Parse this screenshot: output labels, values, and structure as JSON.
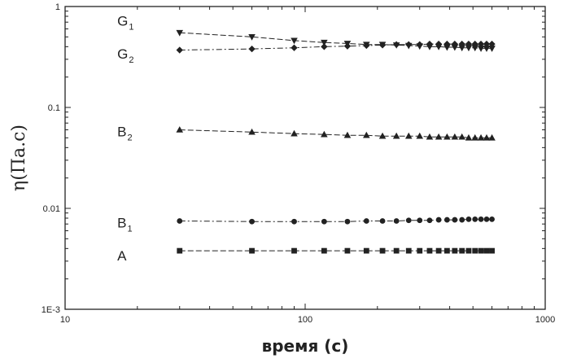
{
  "chart_data": {
    "type": "line",
    "xlabel": "время (c)",
    "ylabel": "η(Па.с)",
    "xscale": "log",
    "yscale": "log",
    "xlim": [
      10,
      1000
    ],
    "ylim": [
      0.001,
      1
    ],
    "x_ticks": [
      {
        "value": 10,
        "label": "10"
      },
      {
        "value": 100,
        "label": "100"
      },
      {
        "value": 1000,
        "label": "1000"
      }
    ],
    "y_ticks": [
      {
        "value": 0.001,
        "label": "1E-3"
      },
      {
        "value": 0.01,
        "label": "0.01"
      },
      {
        "value": 0.1,
        "label": "0.1"
      },
      {
        "value": 1,
        "label": "1"
      }
    ],
    "grid": false,
    "series": [
      {
        "name": "G1",
        "label_main": "G",
        "label_sub": "1",
        "label_at": [
          16.5,
          0.72
        ],
        "marker": "triangle-down",
        "dash": "7,3",
        "x": [
          30,
          60,
          90,
          120,
          150,
          180,
          210,
          240,
          270,
          300,
          330,
          360,
          390,
          420,
          450,
          480,
          510,
          540,
          570,
          600
        ],
        "y": [
          0.55,
          0.5,
          0.46,
          0.44,
          0.43,
          0.42,
          0.42,
          0.415,
          0.41,
          0.405,
          0.4,
          0.4,
          0.395,
          0.395,
          0.39,
          0.39,
          0.39,
          0.385,
          0.385,
          0.385
        ]
      },
      {
        "name": "G2",
        "label_main": "G",
        "label_sub": "2",
        "label_at": [
          16.5,
          0.34
        ],
        "marker": "diamond",
        "dash": "7,3,2,3",
        "x": [
          30,
          60,
          90,
          120,
          150,
          180,
          210,
          240,
          270,
          300,
          330,
          360,
          390,
          420,
          450,
          480,
          510,
          540,
          570,
          600
        ],
        "y": [
          0.37,
          0.38,
          0.39,
          0.4,
          0.405,
          0.41,
          0.415,
          0.42,
          0.42,
          0.42,
          0.425,
          0.425,
          0.425,
          0.425,
          0.425,
          0.425,
          0.425,
          0.425,
          0.425,
          0.425
        ]
      },
      {
        "name": "B2",
        "label_main": "B",
        "label_sub": "2",
        "label_at": [
          16.5,
          0.058
        ],
        "marker": "triangle-up",
        "dash": "7,3",
        "x": [
          30,
          60,
          90,
          120,
          150,
          180,
          210,
          240,
          270,
          300,
          330,
          360,
          390,
          420,
          450,
          480,
          510,
          540,
          570,
          600
        ],
        "y": [
          0.06,
          0.057,
          0.055,
          0.054,
          0.053,
          0.053,
          0.052,
          0.052,
          0.052,
          0.052,
          0.051,
          0.051,
          0.051,
          0.051,
          0.051,
          0.05,
          0.05,
          0.05,
          0.05,
          0.05
        ]
      },
      {
        "name": "B1",
        "label_main": "B",
        "label_sub": "1",
        "label_at": [
          16.5,
          0.0072
        ],
        "marker": "circle",
        "dash": "7,3,2,3",
        "x": [
          30,
          60,
          90,
          120,
          150,
          180,
          210,
          240,
          270,
          300,
          330,
          360,
          390,
          420,
          450,
          480,
          510,
          540,
          570,
          600
        ],
        "y": [
          0.0075,
          0.0074,
          0.0074,
          0.0074,
          0.0074,
          0.0075,
          0.0075,
          0.0075,
          0.0076,
          0.0076,
          0.0076,
          0.0077,
          0.0077,
          0.0077,
          0.0077,
          0.0078,
          0.0078,
          0.0078,
          0.0078,
          0.0078
        ]
      },
      {
        "name": "A",
        "label_main": "A",
        "label_sub": "",
        "label_at": [
          16.5,
          0.0034
        ],
        "marker": "square",
        "dash": "7,3",
        "x": [
          30,
          60,
          90,
          120,
          150,
          180,
          210,
          240,
          270,
          300,
          330,
          360,
          390,
          420,
          450,
          480,
          510,
          540,
          570,
          600
        ],
        "y": [
          0.0038,
          0.0038,
          0.0038,
          0.0038,
          0.0038,
          0.0038,
          0.0038,
          0.0038,
          0.0038,
          0.0038,
          0.0038,
          0.0038,
          0.0038,
          0.0038,
          0.0038,
          0.0038,
          0.0038,
          0.0038,
          0.0038,
          0.0038
        ]
      }
    ]
  }
}
